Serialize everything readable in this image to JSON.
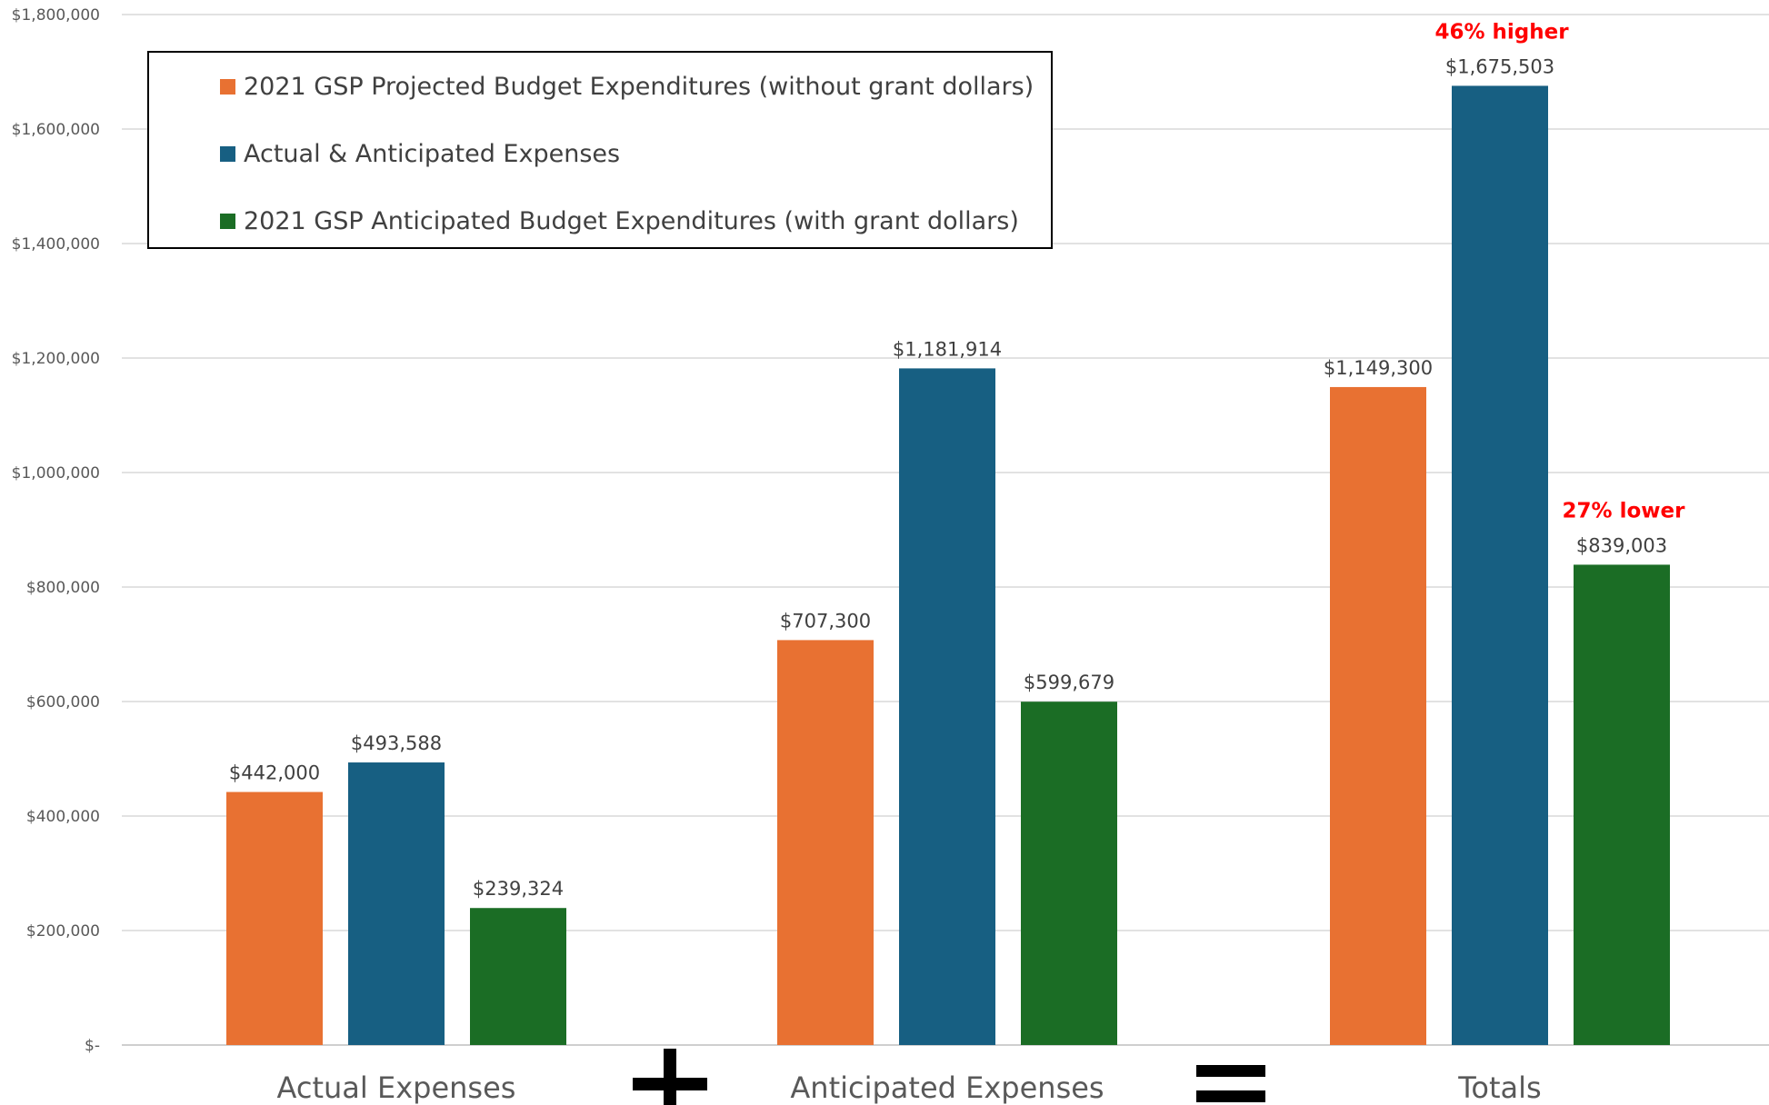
{
  "chart_data": {
    "type": "bar",
    "categories": [
      "Actual Expenses",
      "Anticipated Expenses",
      "Totals"
    ],
    "series": [
      {
        "name": "2021 GSP Projected Budget Expenditures (without grant dollars)",
        "color": "#E87132",
        "values": [
          442000,
          707300,
          1149300
        ]
      },
      {
        "name": "Actual & Anticipated Expenses",
        "color": "#175F82",
        "values": [
          493588,
          1181914,
          1675503
        ]
      },
      {
        "name": "2021 GSP Anticipated Budget Expenditures (with grant dollars)",
        "color": "#1B6D25",
        "values": [
          239324,
          599679,
          839003
        ]
      }
    ],
    "data_labels": [
      [
        "$442,000",
        "$707,300",
        "$1,149,300"
      ],
      [
        "$493,588",
        "$1,181,914",
        "$1,675,503"
      ],
      [
        "$239,324",
        "$599,679",
        "$839,003"
      ]
    ],
    "yticks": [
      0,
      200000,
      400000,
      600000,
      800000,
      1000000,
      1200000,
      1400000,
      1600000,
      1800000
    ],
    "ytick_labels": [
      "$-",
      "$200,000",
      "$400,000",
      "$600,000",
      "$800,000",
      "$1,000,000",
      "$1,200,000",
      "$1,400,000",
      "$1,600,000",
      "$1,800,000"
    ],
    "ylim": [
      0,
      1800000
    ],
    "grid": true,
    "legend_position": "top-left",
    "annotations": [
      {
        "text": "46% higher",
        "category": "Totals",
        "series": 1,
        "color": "#FF0000"
      },
      {
        "text": "27% lower",
        "category": "Totals",
        "series": 2,
        "color": "#FF0000"
      }
    ],
    "operators": [
      "plus",
      "equals"
    ]
  }
}
